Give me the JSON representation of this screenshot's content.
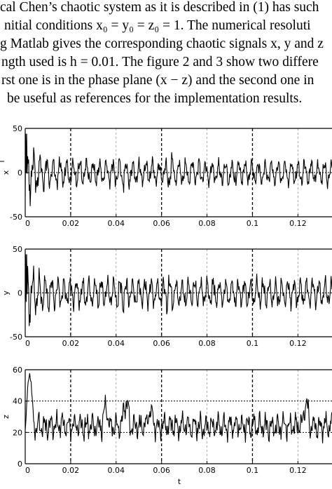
{
  "paragraph": {
    "lines": [
      "cal Chen’s chaotic system as it is described in (1) has such",
      "nitial conditions x₀ = y₀ = z₀ = 1.  The numerical resoluti",
      "g Matlab gives the corresponding chaotic signals x, y and z",
      "ngth used is h = 0.01. The figure 2 and 3 show two differe",
      "rst one is in the phase plane (x − z) and the second one in",
      "be useful as references for the implementation results."
    ]
  },
  "figure": {
    "xlabel": "t",
    "x_ticks": [
      "0",
      "0.02",
      "0.04",
      "0.06",
      "0.08",
      "0.1",
      "0.12"
    ],
    "panels": [
      {
        "ylabel": "x",
        "y_ticks": [
          "50",
          "0",
          "-50"
        ]
      },
      {
        "ylabel": "y",
        "y_ticks": [
          "50",
          "0",
          "-50"
        ]
      },
      {
        "ylabel": "z",
        "y_ticks": [
          "60",
          "40",
          "20",
          "0"
        ]
      }
    ]
  },
  "chart_data": [
    {
      "type": "line",
      "series": [
        {
          "name": "",
          "values": []
        }
      ],
      "xlabel": "",
      "ylabel": "x",
      "xlim": [
        0,
        0.135
      ],
      "ylim": [
        -50,
        50
      ],
      "x_ticks": [
        0,
        0.02,
        0.04,
        0.06,
        0.08,
        0.1,
        0.12
      ],
      "y_ticks": [
        50,
        0,
        -50
      ],
      "grid": true,
      "shape": {
        "mean": 0,
        "amplitude": 13,
        "start_burst": 28
      }
    },
    {
      "type": "line",
      "series": [
        {
          "name": "",
          "values": []
        }
      ],
      "xlabel": "",
      "ylabel": "y",
      "xlim": [
        0,
        0.135
      ],
      "ylim": [
        -50,
        50
      ],
      "x_ticks": [
        0,
        0.02,
        0.04,
        0.06,
        0.08,
        0.1,
        0.12
      ],
      "y_ticks": [
        50,
        0,
        -50
      ],
      "grid": true,
      "shape": {
        "mean": 0,
        "amplitude": 15,
        "start_burst": 32
      }
    },
    {
      "type": "line",
      "series": [
        {
          "name": "",
          "values": []
        }
      ],
      "xlabel": "t",
      "ylabel": "z",
      "xlim": [
        0,
        0.135
      ],
      "ylim": [
        0,
        60
      ],
      "x_ticks": [
        0,
        0.02,
        0.04,
        0.06,
        0.08,
        0.1,
        0.12
      ],
      "y_ticks": [
        60,
        40,
        20,
        0
      ],
      "grid": true,
      "shape": {
        "mean": 24,
        "amplitude": 7,
        "start_burst": 56
      }
    }
  ]
}
